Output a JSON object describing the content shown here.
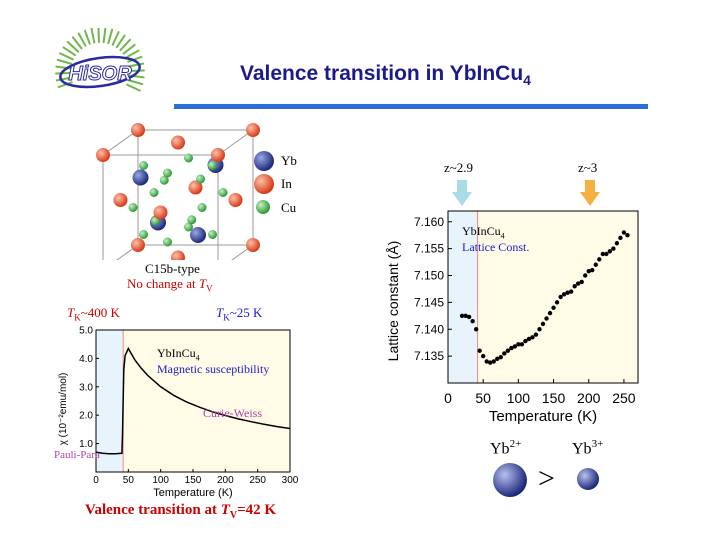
{
  "logo": {
    "text": "HiSOR"
  },
  "title": {
    "prefix": "Valence transition in YbInCu",
    "sub": "4"
  },
  "crystal": {
    "legend": [
      {
        "label": "Yb",
        "color": "#2b3a8c"
      },
      {
        "label": "In",
        "color": "#e8492b"
      },
      {
        "label": "Cu",
        "color": "#39a844"
      }
    ],
    "caption1": "C15b-type",
    "caption2_prefix": "No change at ",
    "caption2_T": "T",
    "caption2_sub": "V"
  },
  "left_panel": {
    "tk_high_T": "T",
    "tk_high_sub": "K",
    "tk_high_value": "~400 K",
    "tk_low_T": "T",
    "tk_low_sub": "K",
    "tk_low_value": "~25 K",
    "compound": "YbInCu",
    "compound_sub": "4",
    "measurement": "Magnetic susceptibility",
    "curie_weiss": "Curie-Weiss",
    "pauli_para": "Pauli-Para",
    "footer_prefix": "Valence transition at ",
    "footer_T": "T",
    "footer_sub": "V",
    "footer_value": "=42 K"
  },
  "right_panel": {
    "arrow_left_label": "z~2.9",
    "arrow_right_label": "z~3",
    "compound": "YbInCu",
    "compound_sub": "4",
    "measurement": "Lattice Const.",
    "ion_left": "Yb",
    "ion_left_sup": "2+",
    "ion_right": "Yb",
    "ion_right_sup": "3+",
    "comparator": ">"
  },
  "chart_data": [
    {
      "type": "line",
      "xlabel": "Temperature (K)",
      "ylabel": "χ (10⁻²emu/mol)",
      "xlim": [
        0,
        300
      ],
      "ylim": [
        0,
        5.0
      ],
      "xticks": [
        0,
        50,
        100,
        150,
        200,
        250,
        300
      ],
      "yticks": [
        1.0,
        2.0,
        3.0,
        4.0,
        5.0
      ],
      "ytick_labels": [
        "1.0",
        "2.0",
        "3.0",
        "4.0",
        "5.0"
      ],
      "grid": false,
      "series": [
        {
          "x": [
            0,
            10,
            20,
            30,
            40,
            41,
            42,
            43,
            45,
            50,
            60,
            70,
            80,
            100,
            120,
            140,
            160,
            180,
            200,
            220,
            240,
            260,
            280,
            300
          ],
          "y": [
            0.7,
            0.66,
            0.64,
            0.64,
            0.66,
            1.3,
            2.6,
            3.6,
            4.1,
            4.35,
            3.95,
            3.65,
            3.4,
            3.0,
            2.7,
            2.47,
            2.28,
            2.12,
            1.99,
            1.87,
            1.77,
            1.68,
            1.6,
            1.53
          ]
        }
      ]
    },
    {
      "type": "scatter",
      "xlabel": "Temperature (K)",
      "ylabel": "Lattice constant (Å)",
      "xlim": [
        0,
        270
      ],
      "ylim": [
        7.13,
        7.162
      ],
      "xticks": [
        0,
        50,
        100,
        150,
        200,
        250
      ],
      "yticks": [
        7.135,
        7.14,
        7.145,
        7.15,
        7.155,
        7.16
      ],
      "ytick_labels": [
        "7.135",
        "7.140",
        "7.145",
        "7.150",
        "7.155",
        "7.160"
      ],
      "grid": false,
      "series": [
        {
          "x": [
            20,
            25,
            30,
            35,
            40,
            45,
            50,
            55,
            60,
            65,
            70,
            75,
            80,
            85,
            90,
            95,
            100,
            105,
            110,
            115,
            120,
            125,
            130,
            135,
            140,
            145,
            150,
            155,
            160,
            165,
            170,
            175,
            180,
            185,
            190,
            195,
            200,
            205,
            210,
            215,
            220,
            225,
            230,
            235,
            240,
            245,
            250,
            255
          ],
          "y": [
            7.1425,
            7.1425,
            7.1423,
            7.1415,
            7.14,
            7.136,
            7.135,
            7.134,
            7.1338,
            7.134,
            7.1345,
            7.1348,
            7.1355,
            7.136,
            7.1365,
            7.1368,
            7.1372,
            7.1372,
            7.1378,
            7.1382,
            7.1385,
            7.139,
            7.14,
            7.141,
            7.142,
            7.143,
            7.144,
            7.145,
            7.146,
            7.1465,
            7.1468,
            7.147,
            7.148,
            7.1485,
            7.1488,
            7.15,
            7.1508,
            7.151,
            7.152,
            7.153,
            7.154,
            7.154,
            7.1545,
            7.155,
            7.156,
            7.157,
            7.158,
            7.1575
          ]
        }
      ]
    }
  ]
}
